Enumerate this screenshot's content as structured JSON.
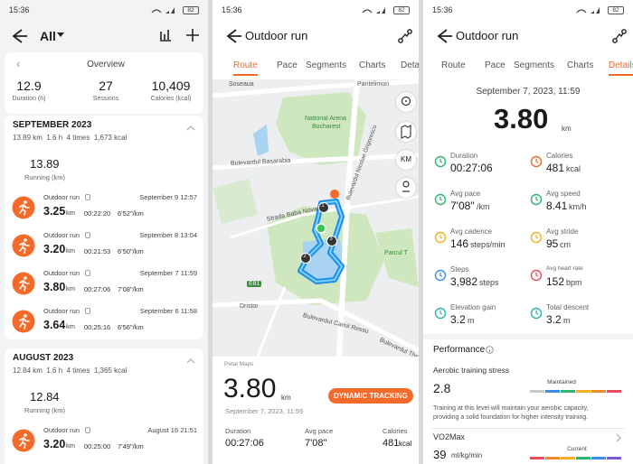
{
  "status": {
    "time": "15:36",
    "battery": "82"
  },
  "history": {
    "filter": "All",
    "overview": {
      "title": "Overview",
      "stats": [
        {
          "value": "12.9",
          "label": "Duration (h)"
        },
        {
          "value": "27",
          "label": "Sessions"
        },
        {
          "value": "10,409",
          "label": "Calories (kcal)"
        }
      ]
    },
    "months": [
      {
        "title": "SEPTEMBER 2023",
        "summary": "13.89 km  1.6 h  4 times  1,673 kcal",
        "total": "13.89",
        "total_label": "Running (km)",
        "activities": [
          {
            "name": "Outdoor run",
            "date": "September 9 12:57",
            "distance": "3.25",
            "unit": "km",
            "duration": "00:22:20",
            "pace": "6'52\"/km"
          },
          {
            "name": "Outdoor run",
            "date": "September 8 13:04",
            "distance": "3.20",
            "unit": "km",
            "duration": "00:21:53",
            "pace": "6'50\"/km"
          },
          {
            "name": "Outdoor run",
            "date": "September 7 11:59",
            "distance": "3.80",
            "unit": "km",
            "duration": "00:27:06",
            "pace": "7'08\"/km"
          },
          {
            "name": "Outdoor run",
            "date": "September 6 11:58",
            "distance": "3.64",
            "unit": "km",
            "duration": "00:25:16",
            "pace": "6'56\"/km"
          }
        ]
      },
      {
        "title": "AUGUST 2023",
        "summary": "12.84 km  1.6 h  4 times  1,365 kcal",
        "total": "12.84",
        "total_label": "Running (km)",
        "activities": [
          {
            "name": "Outdoor run",
            "date": "August 16 21:51",
            "distance": "3.20",
            "unit": "km",
            "duration": "00:25:00",
            "pace": "7'49\"/km"
          }
        ]
      }
    ]
  },
  "route": {
    "title": "Outdoor run",
    "tabs": [
      "Route",
      "Pace",
      "Segments",
      "Charts",
      "Details"
    ],
    "map_labels": [
      "Șoseaua",
      "Pantelimon",
      "National Arena",
      "Bucharest",
      "Bulevardul Basarabia",
      "Bulevardul Nicolae Grigorescu",
      "Strada Baba Novac",
      "Parcul T",
      "E81",
      "Dristor",
      "Bulevardul Camil Ressu",
      "Bulevardul Theod"
    ],
    "map_markers": [
      "1",
      "2",
      "3"
    ],
    "km_button": "KM",
    "map_provider": "Petal Maps",
    "distance": "3.80",
    "unit": "km",
    "button": "DYNAMIC TRACKING",
    "date": "September 7, 2023, 11:59",
    "stats": [
      {
        "label": "Duration",
        "value": "00:27:06"
      },
      {
        "label": "Avg pace",
        "value": "7'08\""
      },
      {
        "label": "Calories",
        "value": "481",
        "unit": "kcal"
      }
    ]
  },
  "details": {
    "title": "Outdoor run",
    "tabs": [
      "Route",
      "Pace",
      "Segments",
      "Charts",
      "Details"
    ],
    "date": "September 7, 2023, 11:59",
    "distance": "3.80",
    "unit": "km",
    "metrics": [
      {
        "label": "Duration",
        "value": "00:27:06"
      },
      {
        "label": "Calories",
        "value": "481",
        "unit": "kcal"
      },
      {
        "label": "Avg pace",
        "value": "7'08\"",
        "unit": "/km"
      },
      {
        "label": "Avg speed",
        "value": "8.41",
        "unit": "km/h"
      },
      {
        "label": "Avg cadence",
        "value": "146",
        "unit": "steps/min"
      },
      {
        "label": "Avg stride",
        "value": "95",
        "unit": "cm"
      },
      {
        "label": "Steps",
        "value": "3,982",
        "unit": "steps"
      },
      {
        "label": "Avg heart rate",
        "value": "152",
        "unit": "bpm"
      },
      {
        "label": "Elevation gain",
        "value": "3.2",
        "unit": "m"
      },
      {
        "label": "Total descent",
        "value": "3.2",
        "unit": "m"
      }
    ],
    "performance": {
      "title": "Performance",
      "aerobic": {
        "title": "Aerobic training stress",
        "value": "2.8",
        "status": "Maintained",
        "description": [
          "Training at this level will maintain your aerobic capacity,",
          "providing a solid foundation for higher intensity training."
        ]
      },
      "vo2max": {
        "title": "VO2Max",
        "value": "39",
        "unit": "ml/kg/min",
        "status": "Current"
      }
    }
  }
}
